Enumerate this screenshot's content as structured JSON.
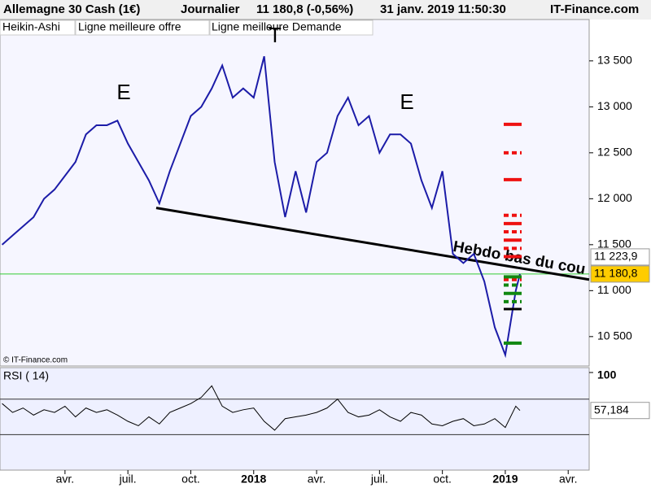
{
  "chart_data": {
    "type": "line",
    "header": {
      "instrument": "Allemagne 30 Cash (1€)",
      "period": "Journalier",
      "quote": "11 180,8 (-0,56%)",
      "datetime": "31 janv. 2019 11:50:30",
      "source": "IT-Finance.com"
    },
    "legend_labels": [
      "Heikin-Ashi",
      "Ligne meilleure offre",
      "Ligne meilleure Demande"
    ],
    "copyright": "© IT-Finance.com",
    "annotations": [
      "E",
      "T",
      "E",
      "Hebdo bas du cou"
    ],
    "x": [
      0,
      0.5,
      1,
      1.5,
      2,
      2.5,
      3,
      3.5,
      4,
      4.5,
      5,
      5.5,
      6,
      6.5,
      7,
      7.5,
      8,
      8.5,
      9,
      9.5,
      10,
      10.5,
      11,
      11.5,
      12,
      12.5,
      13,
      13.5,
      14,
      14.5,
      15,
      15.5,
      16,
      16.5,
      17,
      17.5,
      18,
      18.5,
      19,
      19.5,
      20,
      20.5,
      21,
      21.5,
      22,
      22.5,
      23,
      23.5,
      24,
      24.5,
      24.7
    ],
    "series": [
      {
        "name": "Heikin-Ashi",
        "color": "#1c1ca8",
        "values": [
          11500,
          11600,
          11700,
          11800,
          12000,
          12100,
          12250,
          12400,
          12700,
          12800,
          12800,
          12850,
          12600,
          12400,
          12200,
          11950,
          12300,
          12600,
          12900,
          13000,
          13200,
          13450,
          13100,
          13200,
          13100,
          13550,
          12400,
          11800,
          12300,
          11850,
          12400,
          12500,
          12900,
          13100,
          12800,
          12900,
          12500,
          12700,
          12700,
          12600,
          12200,
          11900,
          12300,
          11400,
          11300,
          11400,
          11100,
          10600,
          10300,
          11000,
          11180.8
        ]
      }
    ],
    "xlim": [
      -0.1,
      28
    ],
    "xticks": [
      {
        "value": 3,
        "label": "avr."
      },
      {
        "value": 6,
        "label": "juil."
      },
      {
        "value": 9,
        "label": "oct."
      },
      {
        "value": 12,
        "label": "2018"
      },
      {
        "value": 15,
        "label": "avr."
      },
      {
        "value": 18,
        "label": "juil."
      },
      {
        "value": 21,
        "label": "oct."
      },
      {
        "value": 24,
        "label": "2019"
      },
      {
        "value": 27,
        "label": "avr."
      }
    ],
    "ylim": [
      10180,
      13950
    ],
    "yticks": [
      {
        "value": 10500,
        "label": "10 500"
      },
      {
        "value": 11000,
        "label": "11 000"
      },
      {
        "value": 11500,
        "label": "11 500"
      },
      {
        "value": 12000,
        "label": "12 000"
      },
      {
        "value": 12500,
        "label": "12 500"
      },
      {
        "value": 13000,
        "label": "13 000"
      },
      {
        "value": 13500,
        "label": "13 500"
      }
    ],
    "neckline": {
      "x": [
        7.35,
        28
      ],
      "values": [
        11900,
        11120
      ],
      "color": "#000000",
      "label": "11 223,9"
    },
    "last_price": {
      "value": 11180.8,
      "label": "11 180,8",
      "color": "#33cc33"
    },
    "offer_levels": {
      "color": "#ee1111",
      "values": [
        12810,
        12500,
        12208,
        11819,
        11730,
        11640,
        11550,
        11460,
        11370,
        11120
      ]
    },
    "bid_levels": {
      "color": "#118811",
      "values": [
        11150,
        11060,
        10970,
        10880,
        10429
      ]
    },
    "stop_level": {
      "color": "#000000",
      "value": 10800
    },
    "rsi": {
      "name": "RSI ( 14)",
      "color": "#000000",
      "values": [
        65,
        55,
        60,
        52,
        58,
        55,
        62,
        50,
        60,
        55,
        58,
        52,
        45,
        40,
        50,
        42,
        55,
        60,
        65,
        72,
        85,
        62,
        55,
        58,
        60,
        45,
        35,
        48,
        50,
        52,
        55,
        60,
        70,
        55,
        50,
        52,
        58,
        50,
        45,
        55,
        52,
        42,
        40,
        45,
        48,
        40,
        42,
        48,
        38,
        62,
        57.184
      ],
      "value_labels": {
        "50": "57,184"
      },
      "ylim": [
        -10,
        105.5
      ],
      "yticks": [
        100
      ],
      "levels": [
        30,
        70
      ]
    }
  }
}
